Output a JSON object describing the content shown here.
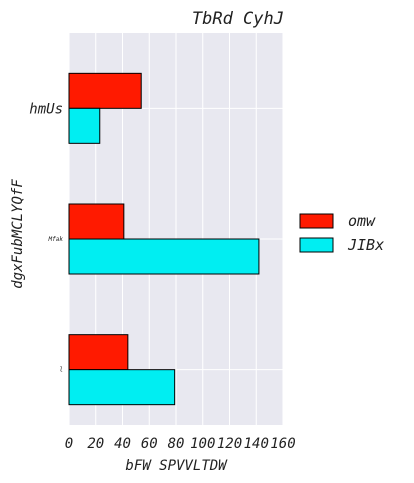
{
  "chart_data": {
    "type": "bar",
    "orientation": "horizontal",
    "title": "TbRd CyhJ",
    "xlabel": "bFW SPVVLTDW",
    "ylabel": "dgxFubMCLYQfF",
    "categories": [
      "hmUs",
      "Mfak",
      "l"
    ],
    "series": [
      {
        "name": "omw",
        "color": "#ff1a00",
        "values": [
          54,
          41,
          44
        ]
      },
      {
        "name": "JIBx",
        "color": "#00eef2",
        "values": [
          23,
          142,
          79
        ]
      }
    ],
    "xlim": [
      0,
      160
    ],
    "xticks": [
      "0",
      "20",
      "40",
      "60",
      "80",
      "100",
      "120",
      "140",
      "160"
    ],
    "grid": true,
    "legend_position": "right",
    "background": "#e8e8f0"
  }
}
